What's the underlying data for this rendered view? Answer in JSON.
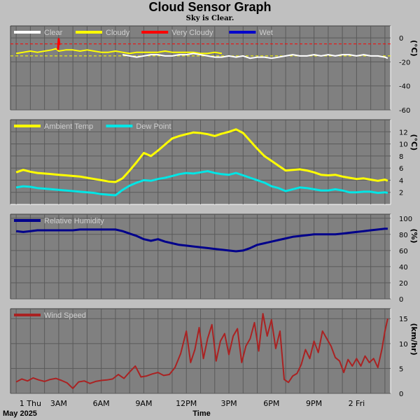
{
  "header": {
    "title": "Cloud Sensor Graph",
    "subtitle": "Sky is Clear."
  },
  "footer": {
    "date_label": "May 2025",
    "time_label": "Time"
  },
  "chart_data": [
    {
      "id": "cloud",
      "type": "line",
      "legend": [
        {
          "name": "Clear",
          "color": "#ffffff"
        },
        {
          "name": "Cloudy",
          "color": "#ffff00"
        },
        {
          "name": "Very Cloudy",
          "color": "#ff0000"
        },
        {
          "name": "Wet",
          "color": "#0000cc"
        }
      ],
      "ylabel": "(°C)",
      "ylim": [
        -60,
        10
      ],
      "yticks": [
        0,
        -20,
        -40,
        -60
      ],
      "thresholds": [
        {
          "value": -5,
          "color": "#ff0000"
        },
        {
          "value": -15,
          "color": "#ffff00"
        }
      ],
      "series": [
        {
          "name": "Cloudy",
          "color": "#ffff00",
          "x": [
            0,
            0.5,
            1,
            1.5,
            2,
            2.5,
            2.8,
            3,
            3.5,
            4,
            4.5,
            5,
            5.5,
            6,
            6.5,
            7,
            7.5,
            8,
            8.5,
            9,
            9.5,
            10,
            10.5,
            11,
            11.5,
            12,
            12.5,
            13,
            13.5,
            14,
            14.5
          ],
          "y": [
            -13,
            -12,
            -11,
            -12,
            -11,
            -10,
            -9,
            -11,
            -10,
            -10,
            -11,
            -10,
            -11,
            -12,
            -12,
            -11,
            -12,
            -13,
            -12,
            -12,
            -12,
            -12,
            -11,
            -12,
            -12,
            -12,
            -12,
            -13,
            -13,
            -12,
            -13
          ]
        },
        {
          "name": "Clear",
          "color": "#ffffff",
          "x": [
            7.5,
            8,
            8.5,
            9,
            9.5,
            10,
            10.5,
            11,
            11.5,
            12,
            12.5,
            13,
            13.5,
            14,
            14.5,
            15,
            15.5,
            16,
            16.5,
            17,
            17.5,
            18,
            18.5,
            19,
            19.5,
            20,
            20.5,
            21,
            21.5,
            22,
            22.5,
            23,
            23.5,
            24,
            24.5,
            25,
            25.5,
            26,
            26.2
          ],
          "y": [
            -14,
            -15,
            -16,
            -15,
            -14,
            -14,
            -15,
            -15,
            -14,
            -14,
            -13,
            -14,
            -15,
            -16,
            -16,
            -15,
            -16,
            -15,
            -17,
            -16,
            -16,
            -17,
            -16,
            -15,
            -14,
            -15,
            -15,
            -14,
            -15,
            -14,
            -15,
            -14,
            -14,
            -15,
            -14,
            -15,
            -15,
            -16,
            -17
          ]
        },
        {
          "name": "Very Cloudy",
          "color": "#ff0000",
          "x": [
            2.95,
            3.0,
            3.05
          ],
          "y": [
            -10,
            -1,
            -6
          ]
        }
      ]
    },
    {
      "id": "temp",
      "type": "line",
      "legend": [
        {
          "name": "Ambient Temp",
          "color": "#ffff00"
        },
        {
          "name": "Dew Point",
          "color": "#00e5e5"
        }
      ],
      "ylabel": "(°C)",
      "ylim": [
        0,
        14
      ],
      "yticks": [
        2,
        4,
        6,
        8,
        10,
        12
      ],
      "series": [
        {
          "name": "Ambient Temp",
          "color": "#ffff00",
          "x": [
            0,
            0.5,
            1,
            1.5,
            2,
            2.5,
            3,
            3.5,
            4,
            4.5,
            5,
            5.5,
            6,
            6.5,
            7,
            7.5,
            8,
            8.5,
            9,
            9.5,
            10,
            10.5,
            11,
            11.5,
            12,
            12.5,
            13,
            13.5,
            14,
            14.5,
            15,
            15.5,
            16,
            16.5,
            17,
            17.5,
            18,
            18.5,
            19,
            19.5,
            20,
            20.5,
            21,
            21.5,
            22,
            22.5,
            23,
            23.5,
            24,
            24.5,
            25,
            25.5,
            26,
            26.2
          ],
          "y": [
            5.3,
            5.7,
            5.4,
            5.2,
            5.1,
            5.0,
            4.9,
            4.8,
            4.7,
            4.6,
            4.4,
            4.2,
            4.0,
            3.8,
            3.7,
            4.3,
            5.6,
            7.0,
            8.5,
            8.0,
            8.9,
            9.9,
            10.9,
            11.3,
            11.6,
            11.9,
            11.8,
            11.6,
            11.3,
            11.7,
            12.0,
            12.4,
            11.8,
            10.5,
            9.2,
            8.0,
            7.2,
            6.4,
            5.6,
            5.7,
            5.8,
            5.6,
            5.3,
            4.9,
            4.8,
            4.9,
            4.6,
            4.4,
            4.2,
            4.3,
            4.1,
            3.9,
            4.1,
            3.9
          ]
        },
        {
          "name": "Dew Point",
          "color": "#00e5e5",
          "x": [
            0,
            0.5,
            1,
            1.5,
            2,
            2.5,
            3,
            3.5,
            4,
            4.5,
            5,
            5.5,
            6,
            6.5,
            7,
            7.5,
            8,
            8.5,
            9,
            9.5,
            10,
            10.5,
            11,
            11.5,
            12,
            12.5,
            13,
            13.5,
            14,
            14.5,
            15,
            15.5,
            16,
            16.5,
            17,
            17.5,
            18,
            18.5,
            19,
            19.5,
            20,
            20.5,
            21,
            21.5,
            22,
            22.5,
            23,
            23.5,
            24,
            24.5,
            25,
            25.5,
            26,
            26.2
          ],
          "y": [
            2.8,
            3.0,
            2.9,
            2.7,
            2.6,
            2.5,
            2.4,
            2.3,
            2.2,
            2.1,
            2.0,
            1.9,
            1.7,
            1.6,
            1.5,
            2.4,
            3.1,
            3.6,
            4.0,
            3.9,
            4.2,
            4.4,
            4.7,
            5.0,
            5.2,
            5.1,
            5.3,
            5.5,
            5.2,
            5.0,
            4.9,
            5.2,
            4.8,
            4.4,
            4.0,
            3.6,
            3.0,
            2.7,
            2.2,
            2.5,
            2.8,
            2.7,
            2.5,
            2.3,
            2.3,
            2.5,
            2.3,
            2.0,
            2.0,
            2.1,
            2.1,
            1.9,
            2.0,
            1.9
          ]
        }
      ]
    },
    {
      "id": "humidity",
      "type": "line",
      "legend": [
        {
          "name": "Relative Humidity",
          "color": "#00008b"
        }
      ],
      "ylabel": "(%)",
      "ylim": [
        0,
        105
      ],
      "yticks": [
        0,
        20,
        40,
        60,
        80,
        100
      ],
      "series": [
        {
          "name": "Relative Humidity",
          "color": "#00008b",
          "x": [
            0,
            0.5,
            1,
            1.5,
            2,
            2.5,
            3,
            3.5,
            4,
            4.5,
            5,
            5.5,
            6,
            6.5,
            7,
            7.5,
            8,
            8.5,
            9,
            9.5,
            10,
            10.5,
            11,
            11.5,
            12,
            12.5,
            13,
            13.5,
            14,
            14.5,
            15,
            15.5,
            16,
            16.5,
            17,
            17.5,
            18,
            18.5,
            19,
            19.5,
            20,
            20.5,
            21,
            21.5,
            22,
            22.5,
            23,
            23.5,
            24,
            24.5,
            25,
            25.5,
            26,
            26.2
          ],
          "y": [
            84,
            83,
            84,
            85,
            85,
            85,
            85,
            85,
            85,
            86,
            86,
            86,
            86,
            86,
            86,
            84,
            81,
            78,
            74,
            72,
            74,
            71,
            69,
            67,
            66,
            65,
            64,
            63,
            62,
            61,
            60,
            59,
            60,
            63,
            67,
            69,
            71,
            73,
            75,
            77,
            78,
            79,
            80,
            80,
            80,
            80,
            81,
            82,
            83,
            84,
            85,
            86,
            87,
            87
          ]
        }
      ]
    },
    {
      "id": "wind",
      "type": "line",
      "legend": [
        {
          "name": "Wind Speed",
          "color": "#aa2222"
        }
      ],
      "ylabel": "(km/hr)",
      "ylim": [
        0,
        17
      ],
      "yticks": [
        0,
        5,
        10,
        15
      ],
      "series": [
        {
          "name": "Wind Speed",
          "color": "#aa2222",
          "x": [
            0,
            0.4,
            0.8,
            1.2,
            1.6,
            2,
            2.4,
            2.8,
            3.2,
            3.6,
            4,
            4.4,
            4.8,
            5.2,
            5.6,
            6,
            6.4,
            6.8,
            7.2,
            7.6,
            8,
            8.4,
            8.8,
            9.2,
            9.6,
            10,
            10.4,
            10.8,
            11.2,
            11.6,
            12,
            12.3,
            12.6,
            12.9,
            13.2,
            13.5,
            13.8,
            14.1,
            14.4,
            14.7,
            15,
            15.3,
            15.6,
            15.9,
            16.2,
            16.5,
            16.8,
            17.1,
            17.4,
            17.7,
            18,
            18.3,
            18.6,
            18.9,
            19.2,
            19.5,
            19.8,
            20.1,
            20.4,
            20.7,
            21,
            21.3,
            21.6,
            21.9,
            22.2,
            22.5,
            22.8,
            23.1,
            23.4,
            23.7,
            24,
            24.3,
            24.6,
            24.9,
            25.2,
            25.5,
            25.8,
            26.0,
            26.2
          ],
          "y": [
            2.3,
            2.9,
            2.5,
            3.1,
            2.7,
            2.4,
            2.8,
            3.0,
            2.6,
            2.1,
            1.0,
            2.3,
            2.5,
            2.0,
            2.4,
            2.6,
            2.7,
            2.9,
            3.8,
            3.0,
            4.3,
            5.5,
            3.3,
            3.5,
            3.9,
            4.2,
            3.6,
            3.8,
            5.2,
            8.0,
            12.5,
            6.2,
            8.8,
            13.2,
            7.0,
            11.0,
            13.8,
            6.5,
            10.5,
            12.0,
            7.8,
            11.5,
            13.0,
            6.2,
            9.5,
            11.0,
            14.2,
            8.5,
            16.0,
            11.5,
            14.8,
            9.0,
            12.5,
            2.8,
            2.2,
            3.5,
            4.0,
            5.8,
            8.8,
            7.0,
            10.5,
            8.2,
            12.5,
            11.0,
            9.5,
            7.2,
            6.5,
            4.2,
            6.8,
            5.5,
            7.0,
            5.5,
            7.5,
            6.2,
            7.0,
            5.2,
            9.0,
            12.5,
            15.0
          ]
        }
      ]
    }
  ],
  "x_axis": {
    "range_hours": [
      -0.4,
      26.4
    ],
    "ticks": [
      {
        "label": "1 Thu",
        "value": 1
      },
      {
        "label": "3AM",
        "value": 3
      },
      {
        "label": "6AM",
        "value": 6
      },
      {
        "label": "9AM",
        "value": 9
      },
      {
        "label": "12PM",
        "value": 12
      },
      {
        "label": "3PM",
        "value": 15
      },
      {
        "label": "6PM",
        "value": 18
      },
      {
        "label": "9PM",
        "value": 21
      },
      {
        "label": "2 Fri",
        "value": 24
      }
    ]
  }
}
